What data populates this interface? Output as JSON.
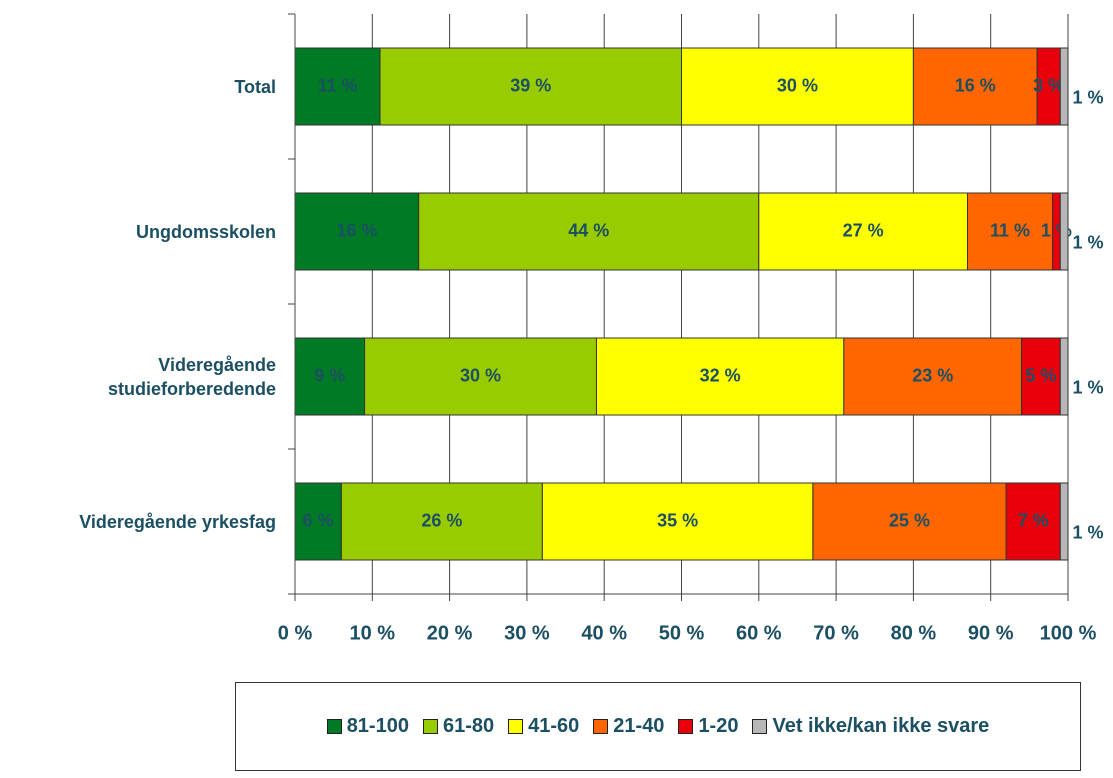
{
  "chart_data": {
    "type": "stacked_barh",
    "categories": [
      "Total",
      "Ungdomsskolen",
      "Videregående studieforberedende",
      "Videregående yrkesfag"
    ],
    "series": [
      {
        "name": "81-100",
        "color": "#007a25",
        "values": [
          11,
          16,
          9,
          6
        ],
        "value_labels": [
          "11 %",
          "16 %",
          "9 %",
          "6 %"
        ]
      },
      {
        "name": "61-80",
        "color": "#99cc00",
        "values": [
          39,
          44,
          30,
          26
        ],
        "value_labels": [
          "39 %",
          "44 %",
          "30 %",
          "26 %"
        ]
      },
      {
        "name": "41-60",
        "color": "#ffff00",
        "values": [
          30,
          27,
          32,
          35
        ],
        "value_labels": [
          "30 %",
          "27 %",
          "32 %",
          "35 %"
        ]
      },
      {
        "name": "21-40",
        "color": "#ff6600",
        "values": [
          16,
          11,
          23,
          25
        ],
        "value_labels": [
          "16 %",
          "11 %",
          "23 %",
          "25 %"
        ]
      },
      {
        "name": "1-20",
        "color": "#e8000b",
        "values": [
          3,
          1,
          5,
          7
        ],
        "value_labels": [
          "3 %",
          "1 %",
          "5 %",
          "7 %"
        ]
      },
      {
        "name": "Vet ikke/kan ikke svare",
        "color": "#b7b7b7",
        "values": [
          1,
          1,
          1,
          1
        ],
        "value_labels": [
          "1 %",
          "1 %",
          "1 %",
          "1 %"
        ]
      }
    ],
    "xlim": [
      0,
      100
    ],
    "xticks": [
      {
        "value": 0,
        "label": "0 %"
      },
      {
        "value": 10,
        "label": "10 %"
      },
      {
        "value": 20,
        "label": "20 %"
      },
      {
        "value": 30,
        "label": "30 %"
      },
      {
        "value": 40,
        "label": "40 %"
      },
      {
        "value": 50,
        "label": "50 %"
      },
      {
        "value": 60,
        "label": "60 %"
      },
      {
        "value": 70,
        "label": "70 %"
      },
      {
        "value": 80,
        "label": "80 %"
      },
      {
        "value": 90,
        "label": "90 %"
      },
      {
        "value": 100,
        "label": "100 %"
      }
    ],
    "grid": true,
    "legend": "bottom"
  }
}
